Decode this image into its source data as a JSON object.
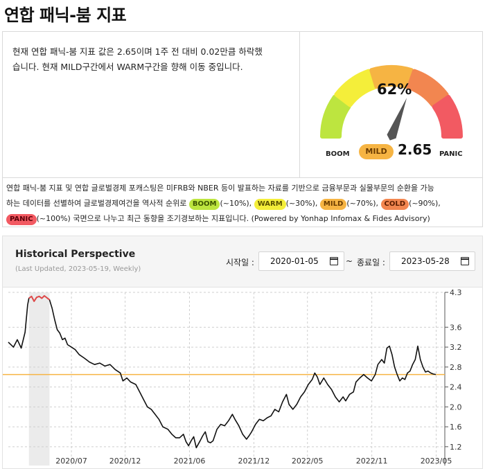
{
  "page": {
    "title": "연합 패닉-붐 지표"
  },
  "summary": {
    "line1": "현재 연합 패닉-붐 지표 값은 2.65이며 1주 전 대비 0.02만큼 하락했",
    "line2": "습니다. 현재 MILD구간에서 WARM구간을 향해 이동 중입니다."
  },
  "gauge": {
    "percent_label": "62%",
    "percent": 62,
    "left_label": "BOOM",
    "right_label": "PANIC",
    "status_label": "MILD",
    "value": "2.65",
    "segment_colors": [
      "#bde53f",
      "#f4ee3a",
      "#f6b443",
      "#f28650",
      "#f25a62"
    ],
    "needle_color": "#555555"
  },
  "description": {
    "p1": "연합 패닉-붐 지표 및 연합 글로벌경제 포캐스팅은 미FRB와 NBER 등이 발표하는 자료를 기반으로 금융부문과 실물부문의 순환을 가능",
    "p2": "하는 데이터를 선별하여 글로벌경제여건을 역사적 순위로 ",
    "boom": "BOOM",
    "boom_range": "(~10%), ",
    "warm": "WARM",
    "warm_range": "(~30%), ",
    "mild": "MILD",
    "mild_range": "(~70%), ",
    "cold": "COLD",
    "cold_range": "(~90%),",
    "panic": "PANIC",
    "panic_range": "(~100%) 국면으로 나누고 최근 동향을 조기경보하는 지표입니다. (Powered by Yonhap Infomax & Fides Advisory)"
  },
  "historical": {
    "title": "Historical Perspective",
    "subtitle": "(Last Updated, 2023-05-19, Weekly)",
    "start_label": "시작일 :",
    "start_value": "2020-01-05",
    "tilde": "~",
    "end_label": "종료일 :",
    "end_value": "2023-05-28"
  },
  "chart_data": {
    "type": "line",
    "y_ticks": [
      "4.3",
      "3.6",
      "3.2",
      "2.8",
      "2.4",
      "2.0",
      "1.6",
      "1.2"
    ],
    "y_tick_values": [
      4.3,
      3.6,
      3.2,
      2.8,
      2.4,
      2.0,
      1.6,
      1.2
    ],
    "x_ticks": [
      "2020/07",
      "2020/12",
      "2021/06",
      "2021/12",
      "2022/05",
      "2022/11",
      "2023/05"
    ],
    "x_tick_values": [
      2020.5,
      2020.917,
      2021.417,
      2021.917,
      2022.333,
      2022.833,
      2023.333
    ],
    "ylim": [
      1.1,
      4.3
    ],
    "xlim": [
      2020.01,
      2023.4
    ],
    "reference_value": 2.65,
    "reference_color": "#f6b443",
    "line_color": "#111111",
    "highlight_color": "#e04a4a",
    "highlight_threshold": 4.1,
    "shaded_period": [
      2020.17,
      2020.33
    ],
    "series": [
      {
        "values": [
          [
            2020.01,
            3.3
          ],
          [
            2020.05,
            3.2
          ],
          [
            2020.08,
            3.35
          ],
          [
            2020.11,
            3.18
          ],
          [
            2020.14,
            3.5
          ],
          [
            2020.16,
            4.05
          ],
          [
            2020.17,
            4.18
          ],
          [
            2020.19,
            4.22
          ],
          [
            2020.21,
            4.12
          ],
          [
            2020.23,
            4.2
          ],
          [
            2020.25,
            4.22
          ],
          [
            2020.27,
            4.18
          ],
          [
            2020.29,
            4.23
          ],
          [
            2020.31,
            4.19
          ],
          [
            2020.33,
            4.15
          ],
          [
            2020.35,
            3.98
          ],
          [
            2020.37,
            3.75
          ],
          [
            2020.39,
            3.55
          ],
          [
            2020.41,
            3.48
          ],
          [
            2020.43,
            3.35
          ],
          [
            2020.45,
            3.38
          ],
          [
            2020.47,
            3.25
          ],
          [
            2020.5,
            3.2
          ],
          [
            2020.53,
            3.15
          ],
          [
            2020.56,
            3.05
          ],
          [
            2020.6,
            2.98
          ],
          [
            2020.64,
            2.9
          ],
          [
            2020.68,
            2.85
          ],
          [
            2020.72,
            2.88
          ],
          [
            2020.76,
            2.82
          ],
          [
            2020.8,
            2.85
          ],
          [
            2020.84,
            2.75
          ],
          [
            2020.88,
            2.68
          ],
          [
            2020.9,
            2.52
          ],
          [
            2020.93,
            2.58
          ],
          [
            2020.96,
            2.5
          ],
          [
            2021.0,
            2.45
          ],
          [
            2021.03,
            2.3
          ],
          [
            2021.06,
            2.15
          ],
          [
            2021.09,
            2.0
          ],
          [
            2021.12,
            1.95
          ],
          [
            2021.15,
            1.85
          ],
          [
            2021.18,
            1.75
          ],
          [
            2021.21,
            1.6
          ],
          [
            2021.25,
            1.55
          ],
          [
            2021.28,
            1.45
          ],
          [
            2021.31,
            1.38
          ],
          [
            2021.34,
            1.38
          ],
          [
            2021.37,
            1.45
          ],
          [
            2021.39,
            1.3
          ],
          [
            2021.41,
            1.22
          ],
          [
            2021.43,
            1.32
          ],
          [
            2021.45,
            1.4
          ],
          [
            2021.47,
            1.18
          ],
          [
            2021.5,
            1.32
          ],
          [
            2021.52,
            1.42
          ],
          [
            2021.54,
            1.5
          ],
          [
            2021.56,
            1.3
          ],
          [
            2021.58,
            1.28
          ],
          [
            2021.6,
            1.32
          ],
          [
            2021.63,
            1.55
          ],
          [
            2021.66,
            1.65
          ],
          [
            2021.69,
            1.62
          ],
          [
            2021.72,
            1.72
          ],
          [
            2021.75,
            1.85
          ],
          [
            2021.77,
            1.75
          ],
          [
            2021.8,
            1.62
          ],
          [
            2021.83,
            1.45
          ],
          [
            2021.86,
            1.35
          ],
          [
            2021.88,
            1.42
          ],
          [
            2021.9,
            1.5
          ],
          [
            2021.93,
            1.65
          ],
          [
            2021.96,
            1.75
          ],
          [
            2021.99,
            1.72
          ],
          [
            2022.02,
            1.78
          ],
          [
            2022.05,
            1.82
          ],
          [
            2022.08,
            1.95
          ],
          [
            2022.11,
            1.9
          ],
          [
            2022.14,
            2.1
          ],
          [
            2022.17,
            2.25
          ],
          [
            2022.19,
            2.05
          ],
          [
            2022.22,
            1.95
          ],
          [
            2022.25,
            2.05
          ],
          [
            2022.28,
            2.2
          ],
          [
            2022.31,
            2.3
          ],
          [
            2022.34,
            2.45
          ],
          [
            2022.37,
            2.55
          ],
          [
            2022.39,
            2.68
          ],
          [
            2022.41,
            2.6
          ],
          [
            2022.43,
            2.45
          ],
          [
            2022.46,
            2.58
          ],
          [
            2022.49,
            2.45
          ],
          [
            2022.52,
            2.35
          ],
          [
            2022.55,
            2.2
          ],
          [
            2022.58,
            2.1
          ],
          [
            2022.61,
            2.2
          ],
          [
            2022.63,
            2.12
          ],
          [
            2022.66,
            2.25
          ],
          [
            2022.69,
            2.3
          ],
          [
            2022.71,
            2.5
          ],
          [
            2022.74,
            2.58
          ],
          [
            2022.77,
            2.65
          ],
          [
            2022.8,
            2.58
          ],
          [
            2022.83,
            2.52
          ],
          [
            2022.86,
            2.65
          ],
          [
            2022.88,
            2.85
          ],
          [
            2022.91,
            2.95
          ],
          [
            2022.93,
            2.88
          ],
          [
            2022.95,
            3.18
          ],
          [
            2022.97,
            3.22
          ],
          [
            2022.99,
            3.05
          ],
          [
            2023.01,
            2.8
          ],
          [
            2023.03,
            2.65
          ],
          [
            2023.05,
            2.52
          ],
          [
            2023.07,
            2.58
          ],
          [
            2023.09,
            2.55
          ],
          [
            2023.11,
            2.68
          ],
          [
            2023.13,
            2.72
          ],
          [
            2023.15,
            2.85
          ],
          [
            2023.17,
            2.95
          ],
          [
            2023.19,
            3.22
          ],
          [
            2023.21,
            2.95
          ],
          [
            2023.23,
            2.8
          ],
          [
            2023.25,
            2.7
          ],
          [
            2023.27,
            2.72
          ],
          [
            2023.29,
            2.68
          ],
          [
            2023.31,
            2.66
          ],
          [
            2023.33,
            2.65
          ]
        ]
      }
    ]
  }
}
